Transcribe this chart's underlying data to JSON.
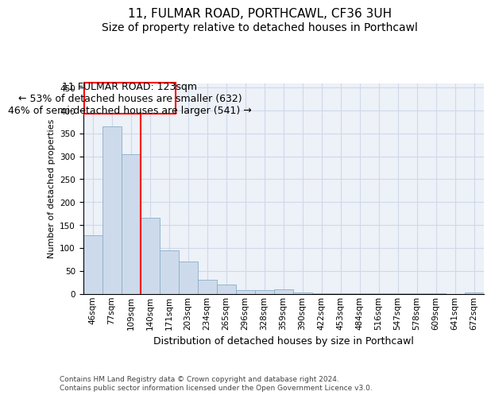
{
  "title1": "11, FULMAR ROAD, PORTHCAWL, CF36 3UH",
  "title2": "Size of property relative to detached houses in Porthcawl",
  "xlabel": "Distribution of detached houses by size in Porthcawl",
  "ylabel": "Number of detached properties",
  "bar_values": [
    127,
    365,
    305,
    165,
    95,
    70,
    30,
    20,
    7,
    7,
    9,
    3,
    1,
    1,
    1,
    1,
    1,
    1,
    1,
    0,
    3
  ],
  "bar_labels": [
    "46sqm",
    "77sqm",
    "109sqm",
    "140sqm",
    "171sqm",
    "203sqm",
    "234sqm",
    "265sqm",
    "296sqm",
    "328sqm",
    "359sqm",
    "390sqm",
    "422sqm",
    "453sqm",
    "484sqm",
    "516sqm",
    "547sqm",
    "578sqm",
    "609sqm",
    "641sqm",
    "672sqm"
  ],
  "bar_color": "#cddaeb",
  "bar_edge_color": "#8aaec8",
  "bar_edge_width": 0.6,
  "ann_line1": "11 FULMAR ROAD: 123sqm",
  "ann_line2": "← 53% of detached houses are smaller (632)",
  "ann_line3": "46% of semi-detached houses are larger (541) →",
  "red_line_x": 3.0,
  "ylim_max": 460,
  "yticks": [
    0,
    50,
    100,
    150,
    200,
    250,
    300,
    350,
    400,
    450
  ],
  "grid_color": "#d0d8e8",
  "plot_bg_color": "#edf1f8",
  "footer1": "Contains HM Land Registry data © Crown copyright and database right 2024.",
  "footer2": "Contains public sector information licensed under the Open Government Licence v3.0.",
  "title1_fs": 11,
  "title2_fs": 10,
  "ylabel_fs": 8,
  "xlabel_fs": 9,
  "tick_fs": 7.5,
  "ann_fs": 9,
  "footer_fs": 6.5
}
